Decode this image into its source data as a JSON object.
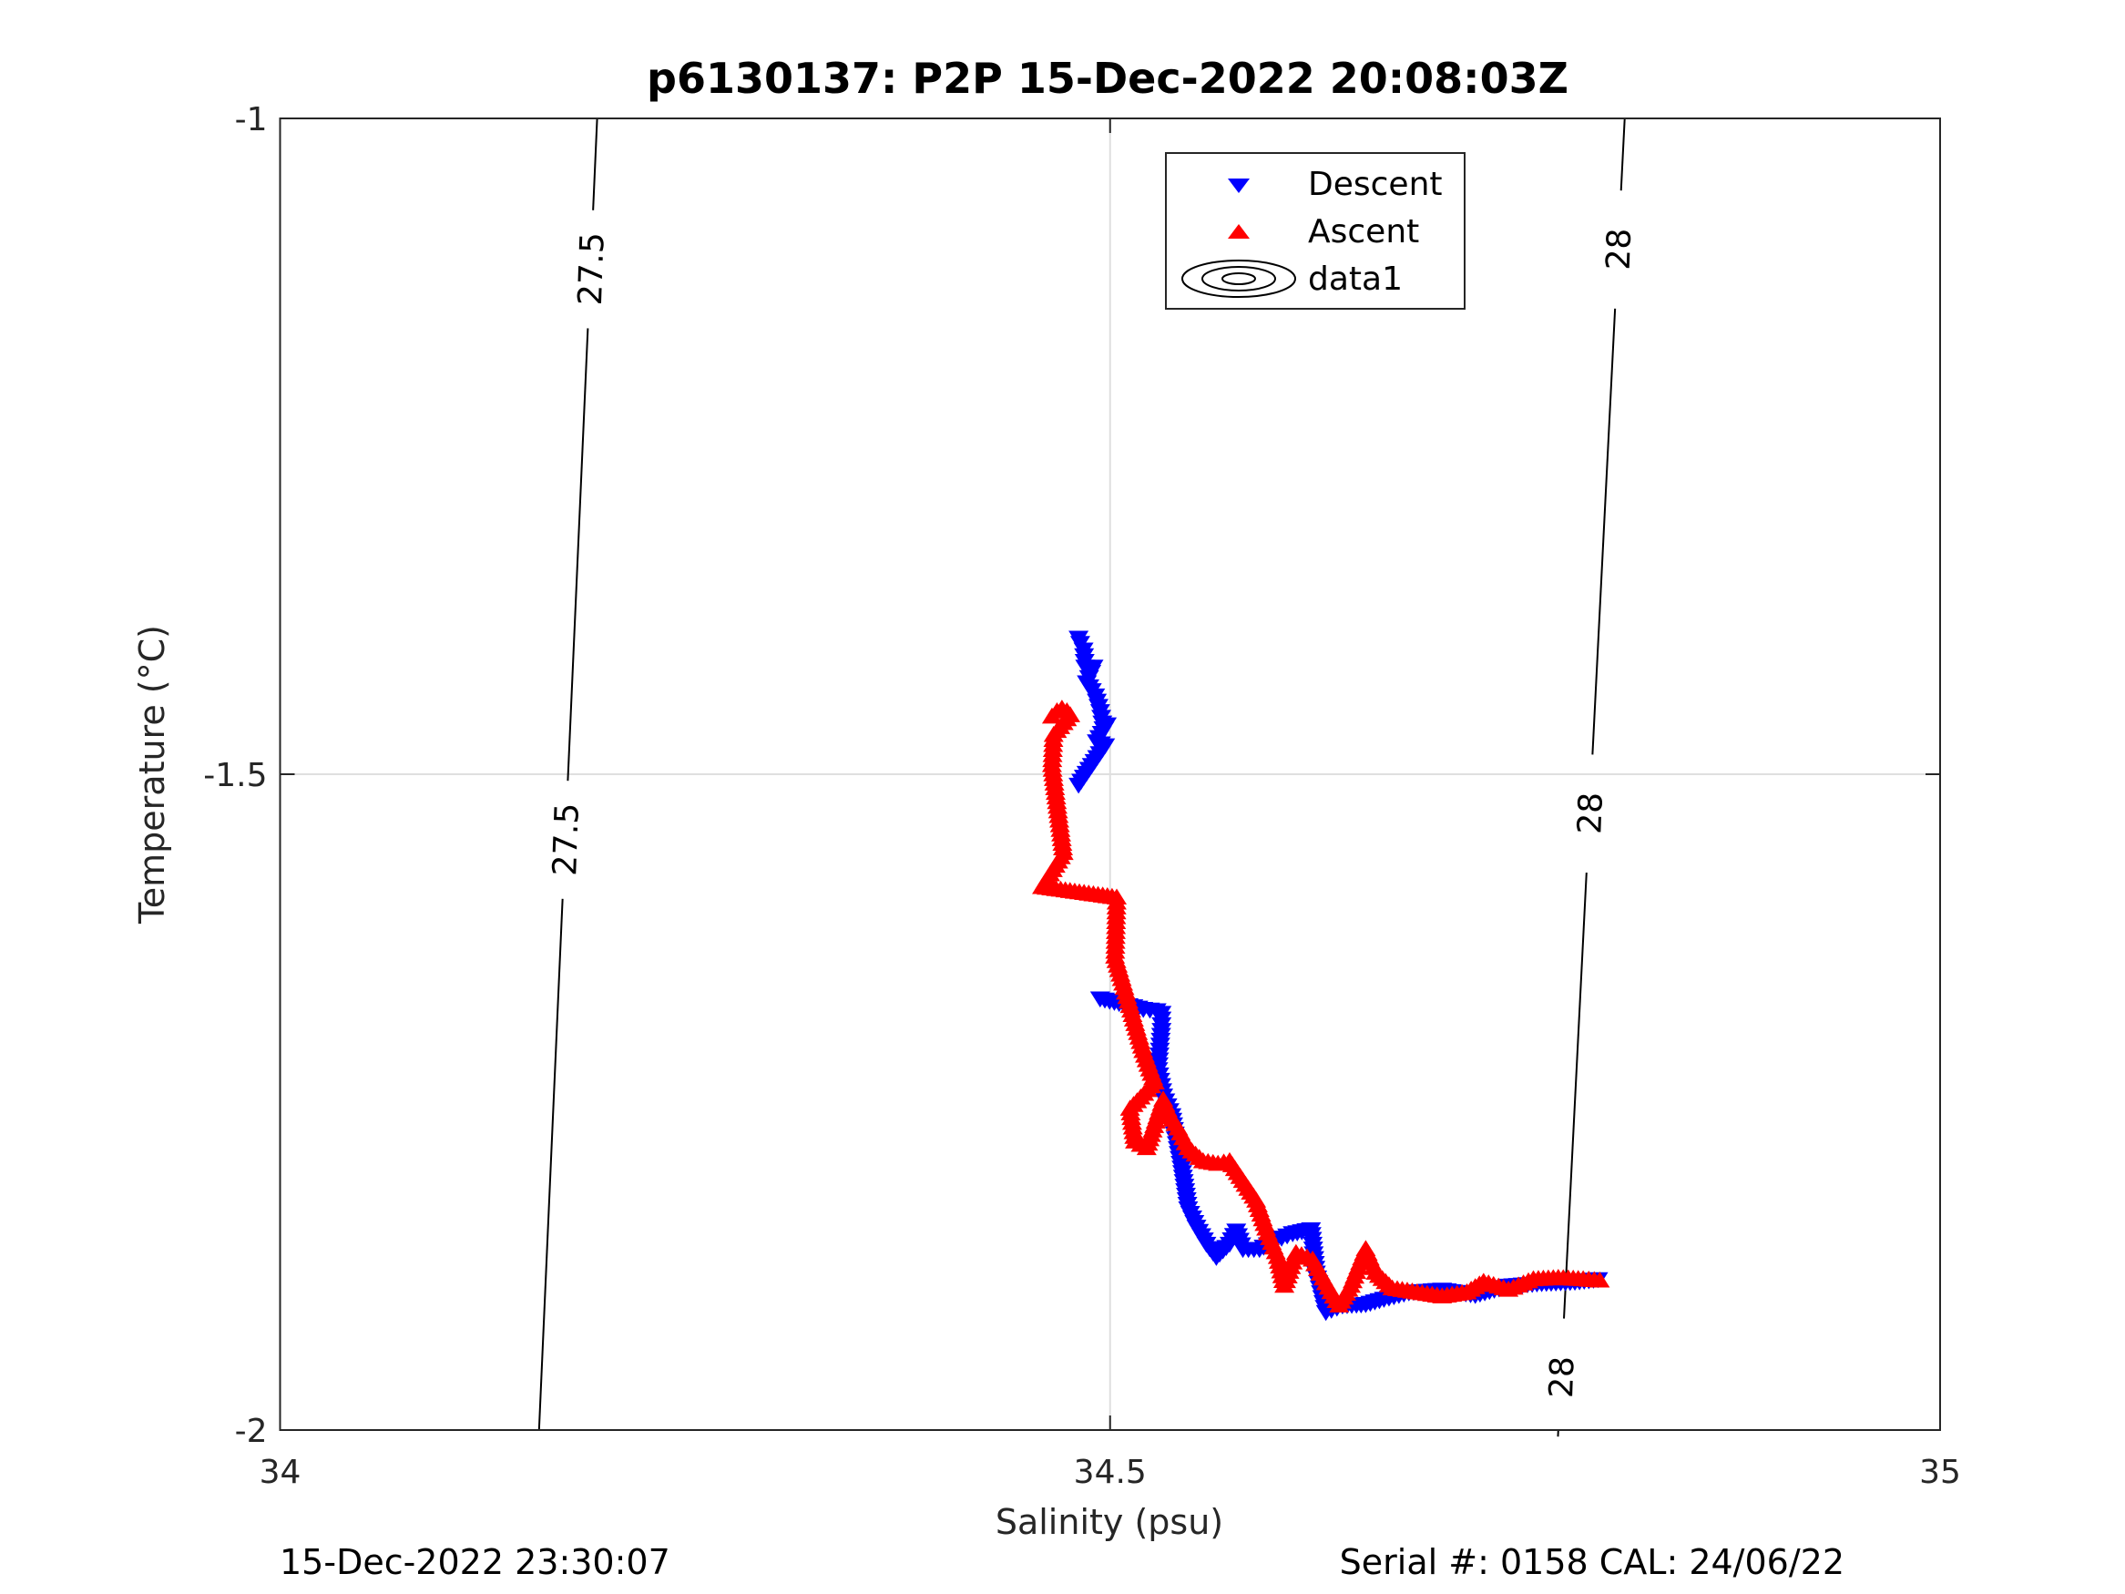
{
  "chart_data": {
    "type": "scatter",
    "title": "p6130137: P2P 15-Dec-2022 20:08:03Z",
    "xlabel": "Salinity (psu)",
    "ylabel": "Temperature (°C)",
    "xlim": [
      34,
      35
    ],
    "ylim": [
      -2,
      -1
    ],
    "xticks": [
      34,
      34.5,
      35
    ],
    "xtick_labels": [
      "34",
      "34.5",
      "35"
    ],
    "yticks": [
      -1,
      -1.5,
      -2
    ],
    "ytick_labels": [
      "-1",
      "-1.5",
      "-2"
    ],
    "grid": true,
    "legend": {
      "placement": "top-center",
      "entries": [
        "Descent",
        "Ascent",
        "data1"
      ]
    },
    "series": [
      {
        "name": "Descent",
        "marker": "triangle-down",
        "color": "#0000ff",
        "points": [
          [
            34.481,
            -1.396
          ],
          [
            34.482,
            -1.4
          ],
          [
            34.484,
            -1.405
          ],
          [
            34.485,
            -1.418
          ],
          [
            34.488,
            -1.42
          ],
          [
            34.49,
            -1.418
          ],
          [
            34.486,
            -1.43
          ],
          [
            34.489,
            -1.436
          ],
          [
            34.491,
            -1.44
          ],
          [
            34.494,
            -1.452
          ],
          [
            34.496,
            -1.465
          ],
          [
            34.498,
            -1.462
          ],
          [
            34.492,
            -1.475
          ],
          [
            34.497,
            -1.478
          ],
          [
            34.481,
            -1.508
          ],
          [
            34.494,
            -1.671
          ],
          [
            34.514,
            -1.677
          ],
          [
            34.52,
            -1.679
          ],
          [
            34.528,
            -1.68
          ],
          [
            34.531,
            -1.682
          ],
          [
            34.531,
            -1.695
          ],
          [
            34.53,
            -1.71
          ],
          [
            34.529,
            -1.725
          ],
          [
            34.532,
            -1.745
          ],
          [
            34.537,
            -1.76
          ],
          [
            34.539,
            -1.774
          ],
          [
            34.543,
            -1.8
          ],
          [
            34.547,
            -1.831
          ],
          [
            34.552,
            -1.845
          ],
          [
            34.558,
            -1.858
          ],
          [
            34.564,
            -1.868
          ],
          [
            34.572,
            -1.858
          ],
          [
            34.576,
            -1.848
          ],
          [
            34.58,
            -1.862
          ],
          [
            34.59,
            -1.862
          ],
          [
            34.6,
            -1.855
          ],
          [
            34.61,
            -1.85
          ],
          [
            34.621,
            -1.847
          ],
          [
            34.624,
            -1.88
          ],
          [
            34.63,
            -1.91
          ],
          [
            34.64,
            -1.905
          ],
          [
            34.654,
            -1.904
          ],
          [
            34.665,
            -1.9
          ],
          [
            34.68,
            -1.895
          ],
          [
            34.7,
            -1.893
          ],
          [
            34.72,
            -1.897
          ],
          [
            34.74,
            -1.89
          ],
          [
            34.76,
            -1.888
          ],
          [
            34.78,
            -1.887
          ],
          [
            34.794,
            -1.885
          ]
        ]
      },
      {
        "name": "Ascent",
        "marker": "triangle-up",
        "color": "#ff0000",
        "points": [
          [
            34.465,
            -1.456
          ],
          [
            34.468,
            -1.452
          ],
          [
            34.471,
            -1.45
          ],
          [
            34.474,
            -1.452
          ],
          [
            34.476,
            -1.455
          ],
          [
            34.466,
            -1.47
          ],
          [
            34.465,
            -1.493
          ],
          [
            34.472,
            -1.56
          ],
          [
            34.459,
            -1.586
          ],
          [
            34.504,
            -1.594
          ],
          [
            34.503,
            -1.639
          ],
          [
            34.52,
            -1.711
          ],
          [
            34.524,
            -1.725
          ],
          [
            34.527,
            -1.735
          ],
          [
            34.512,
            -1.755
          ],
          [
            34.515,
            -1.78
          ],
          [
            34.522,
            -1.785
          ],
          [
            34.532,
            -1.748
          ],
          [
            34.536,
            -1.76
          ],
          [
            34.541,
            -1.77
          ],
          [
            34.547,
            -1.785
          ],
          [
            34.556,
            -1.795
          ],
          [
            34.565,
            -1.797
          ],
          [
            34.572,
            -1.795
          ],
          [
            34.58,
            -1.81
          ],
          [
            34.588,
            -1.825
          ],
          [
            34.595,
            -1.85
          ],
          [
            34.601,
            -1.868
          ],
          [
            34.605,
            -1.89
          ],
          [
            34.612,
            -1.865
          ],
          [
            34.622,
            -1.87
          ],
          [
            34.63,
            -1.888
          ],
          [
            34.638,
            -1.905
          ],
          [
            34.645,
            -1.89
          ],
          [
            34.654,
            -1.862
          ],
          [
            34.66,
            -1.88
          ],
          [
            34.67,
            -1.892
          ],
          [
            34.685,
            -1.895
          ],
          [
            34.7,
            -1.898
          ],
          [
            34.715,
            -1.895
          ],
          [
            34.725,
            -1.887
          ],
          [
            34.74,
            -1.893
          ],
          [
            34.755,
            -1.885
          ],
          [
            34.77,
            -1.884
          ],
          [
            34.785,
            -1.885
          ],
          [
            34.795,
            -1.886
          ]
        ]
      }
    ],
    "contours": [
      {
        "level": "27.5",
        "top": [
          34.191,
          -1
        ],
        "bottom": [
          34.156,
          -2
        ],
        "label_temps": [
          -1.115,
          -1.55
        ]
      },
      {
        "level": "28",
        "top": [
          34.81,
          -1
        ],
        "bottom": [
          34.77,
          -2
        ],
        "label_temps": [
          -1.1,
          -1.53,
          -1.96
        ]
      }
    ]
  },
  "footer": {
    "left": "15-Dec-2022 23:30:07",
    "right": "Serial #: 0158  CAL: 24/06/22"
  }
}
